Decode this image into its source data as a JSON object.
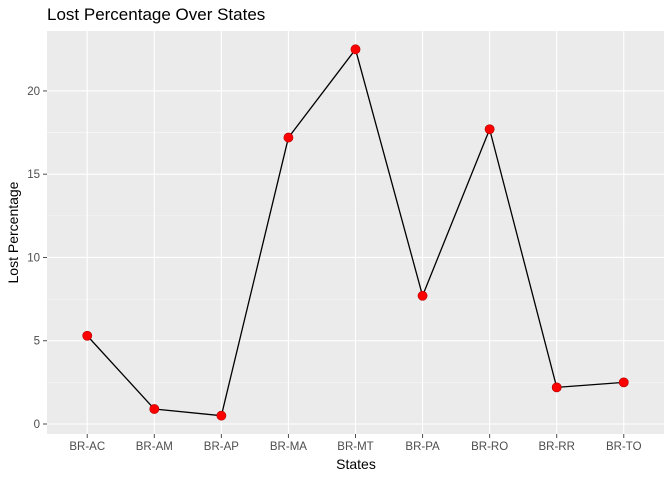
{
  "chart_data": {
    "type": "line",
    "title": "Lost Percentage Over States",
    "xlabel": "States",
    "ylabel": "Lost Percentage",
    "categories": [
      "BR-AC",
      "BR-AM",
      "BR-AP",
      "BR-MA",
      "BR-MT",
      "BR-PA",
      "BR-RO",
      "BR-RR",
      "BR-TO"
    ],
    "values": [
      5.3,
      0.9,
      0.5,
      17.2,
      22.5,
      7.7,
      17.7,
      2.2,
      2.5
    ],
    "y_ticks": [
      0,
      5,
      10,
      15,
      20
    ],
    "ylim": [
      -0.6,
      23.6
    ],
    "grid": true,
    "colors": {
      "panel": "#ebebeb",
      "grid_major": "#ffffff",
      "line": "#000000",
      "point": "#ff0000",
      "tick": "#4d4d4d"
    }
  }
}
